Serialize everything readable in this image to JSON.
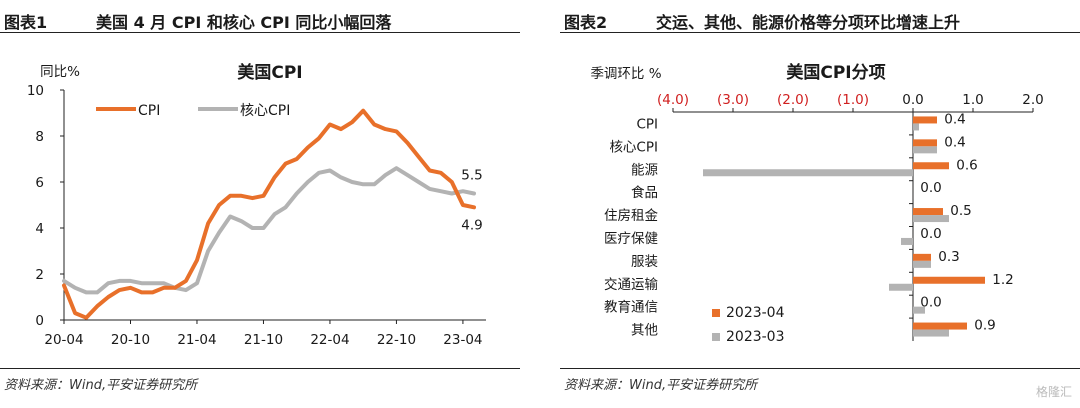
{
  "left": {
    "fig_no": "图表1",
    "fig_title": "美国 4 月 CPI 和核心 CPI 同比小幅回落",
    "source": "资料来源：Wind,平安证券研究所",
    "chart_data": {
      "type": "line",
      "title": "美国CPI",
      "ylabel": "同比%",
      "ylim": [
        0,
        10
      ],
      "y_ticks": [
        "0",
        "2",
        "4",
        "6",
        "8",
        "10"
      ],
      "x_ticks": [
        "20-04",
        "20-10",
        "21-04",
        "21-10",
        "22-04",
        "22-10",
        "23-04"
      ],
      "colors": {
        "CPI": "#e8702a",
        "核心CPI": "#b3b3b3"
      },
      "end_labels": {
        "CPI": "4.9",
        "核心CPI": "5.5"
      },
      "series": [
        {
          "name": "CPI",
          "values": [
            1.5,
            0.3,
            0.1,
            0.6,
            1.0,
            1.3,
            1.4,
            1.2,
            1.2,
            1.4,
            1.4,
            1.7,
            2.6,
            4.2,
            5.0,
            5.4,
            5.4,
            5.3,
            5.4,
            6.2,
            6.8,
            7.0,
            7.5,
            7.9,
            8.5,
            8.3,
            8.6,
            9.1,
            8.5,
            8.3,
            8.2,
            7.7,
            7.1,
            6.5,
            6.4,
            6.0,
            5.0,
            4.9
          ]
        },
        {
          "name": "核心CPI",
          "values": [
            1.7,
            1.4,
            1.2,
            1.2,
            1.6,
            1.7,
            1.7,
            1.6,
            1.6,
            1.6,
            1.4,
            1.3,
            1.6,
            3.0,
            3.8,
            4.5,
            4.3,
            4.0,
            4.0,
            4.6,
            4.9,
            5.5,
            6.0,
            6.4,
            6.5,
            6.2,
            6.0,
            5.9,
            5.9,
            6.3,
            6.6,
            6.3,
            6.0,
            5.7,
            5.6,
            5.5,
            5.6,
            5.5
          ]
        }
      ]
    }
  },
  "right": {
    "fig_no": "图表2",
    "fig_title": "交运、其他、能源价格等分项环比增速上升",
    "source": "资料来源：Wind,平安证券研究所",
    "chart_data": {
      "type": "bar",
      "title": "美国CPI分项",
      "xlabel": "季调环比 %",
      "xlim": [
        -4.0,
        2.0
      ],
      "x_ticks": [
        "(4.0)",
        "(3.0)",
        "(2.0)",
        "(1.0)",
        "0.0",
        "1.0",
        "2.0"
      ],
      "categories": [
        "CPI",
        "核心CPI",
        "能源",
        "食品",
        "住房租金",
        "医疗保健",
        "服装",
        "交通运输",
        "教育通信",
        "其他"
      ],
      "colors": {
        "2023-04": "#e8702a",
        "2023-03": "#b3b3b3"
      },
      "labels": [
        "0.4",
        "0.4",
        "0.6",
        "0.0",
        "0.5",
        "0.0",
        "0.3",
        "1.2",
        "0.0",
        "0.9"
      ],
      "series": [
        {
          "name": "2023-04",
          "values": [
            0.4,
            0.4,
            0.6,
            0.0,
            0.5,
            0.0,
            0.3,
            1.2,
            0.0,
            0.9
          ]
        },
        {
          "name": "2023-03",
          "values": [
            0.1,
            0.4,
            -3.5,
            0.0,
            0.6,
            -0.2,
            0.3,
            -0.4,
            0.2,
            0.6
          ]
        }
      ]
    }
  },
  "watermark": "格隆汇"
}
